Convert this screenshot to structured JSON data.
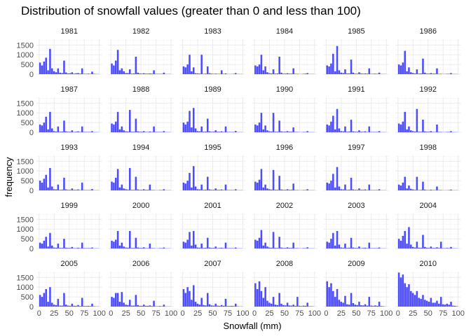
{
  "chart_data": {
    "type": "bar",
    "subtype": "faceted-histogram",
    "title": "Distribution of snowfall values (greater than 0 and less than 100)",
    "xlabel": "Snowfall (mm)",
    "ylabel": "frequency",
    "xlim": [
      0,
      100
    ],
    "ylim": [
      0,
      1800
    ],
    "x_ticks": [
      0,
      25,
      50,
      75,
      100
    ],
    "y_ticks": [
      0,
      500,
      1000,
      1500
    ],
    "bin_width": 3.33,
    "grid": true,
    "bar_color": "#4d4dff",
    "bin_centers": [
      1.67,
      5,
      8.33,
      11.67,
      15,
      18.33,
      21.67,
      25,
      28.33,
      31.67,
      35,
      38.33,
      41.67,
      45,
      48.33,
      51.67,
      55,
      58.33,
      61.67,
      65,
      68.33,
      71.67,
      75,
      78.33,
      81.67,
      85,
      88.33,
      91.67,
      95,
      98.33
    ],
    "facets": [
      {
        "label": "1981",
        "values": [
          600,
          450,
          650,
          850,
          200,
          1300,
          300,
          150,
          100,
          300,
          80,
          60,
          700,
          90,
          40,
          50,
          100,
          30,
          50,
          60,
          30,
          300,
          20,
          20,
          30,
          20,
          130,
          20,
          10,
          10
        ]
      },
      {
        "label": "1982",
        "values": [
          550,
          450,
          700,
          1250,
          200,
          300,
          150,
          60,
          60,
          250,
          30,
          40,
          900,
          80,
          40,
          30,
          50,
          30,
          30,
          40,
          30,
          200,
          20,
          20,
          20,
          20,
          80,
          10,
          10,
          10
        ]
      },
      {
        "label": "1983",
        "values": [
          400,
          350,
          500,
          1000,
          150,
          350,
          50,
          40,
          30,
          1000,
          20,
          30,
          400,
          50,
          30,
          20,
          30,
          20,
          20,
          200,
          20,
          40,
          10,
          10,
          10,
          20,
          60,
          10,
          10,
          10
        ]
      },
      {
        "label": "1984",
        "values": [
          450,
          400,
          500,
          1000,
          200,
          400,
          100,
          50,
          40,
          250,
          30,
          40,
          900,
          80,
          30,
          30,
          50,
          30,
          30,
          300,
          20,
          20,
          10,
          10,
          20,
          30,
          60,
          10,
          10,
          10
        ]
      },
      {
        "label": "1985",
        "values": [
          450,
          400,
          550,
          1050,
          150,
          1450,
          200,
          80,
          60,
          250,
          40,
          40,
          750,
          80,
          30,
          30,
          100,
          40,
          30,
          40,
          30,
          300,
          20,
          20,
          30,
          20,
          80,
          10,
          10,
          10
        ]
      },
      {
        "label": "1986",
        "values": [
          500,
          450,
          600,
          1200,
          150,
          350,
          100,
          60,
          40,
          250,
          30,
          40,
          800,
          80,
          30,
          30,
          60,
          30,
          30,
          300,
          20,
          20,
          10,
          10,
          20,
          20,
          60,
          10,
          10,
          10
        ]
      },
      {
        "label": "1987",
        "values": [
          400,
          350,
          500,
          800,
          150,
          1050,
          200,
          60,
          40,
          300,
          30,
          40,
          600,
          50,
          30,
          30,
          100,
          20,
          30,
          50,
          20,
          300,
          20,
          20,
          20,
          20,
          60,
          10,
          10,
          10
        ]
      },
      {
        "label": "1988",
        "values": [
          450,
          400,
          550,
          1050,
          150,
          300,
          100,
          50,
          40,
          1150,
          30,
          30,
          700,
          50,
          30,
          30,
          60,
          20,
          20,
          40,
          20,
          300,
          20,
          20,
          20,
          20,
          60,
          10,
          10,
          10
        ]
      },
      {
        "label": "1989",
        "values": [
          500,
          400,
          550,
          1100,
          250,
          1250,
          200,
          60,
          50,
          300,
          30,
          40,
          700,
          50,
          30,
          30,
          100,
          30,
          30,
          50,
          20,
          300,
          20,
          20,
          20,
          20,
          70,
          10,
          10,
          10
        ]
      },
      {
        "label": "1990",
        "values": [
          400,
          350,
          500,
          1000,
          150,
          350,
          100,
          50,
          40,
          1000,
          30,
          30,
          600,
          50,
          30,
          30,
          60,
          30,
          30,
          250,
          20,
          20,
          10,
          10,
          20,
          20,
          60,
          10,
          10,
          10
        ]
      },
      {
        "label": "1991",
        "values": [
          400,
          350,
          550,
          850,
          150,
          1200,
          200,
          60,
          50,
          300,
          30,
          40,
          650,
          50,
          30,
          30,
          100,
          30,
          30,
          50,
          20,
          300,
          20,
          20,
          20,
          20,
          60,
          10,
          10,
          10
        ]
      },
      {
        "label": "1992",
        "values": [
          450,
          400,
          550,
          1050,
          150,
          300,
          100,
          60,
          40,
          1200,
          30,
          30,
          650,
          50,
          30,
          30,
          60,
          20,
          20,
          400,
          20,
          20,
          10,
          10,
          20,
          20,
          60,
          10,
          10,
          10
        ]
      },
      {
        "label": "1993",
        "values": [
          500,
          400,
          600,
          800,
          150,
          1150,
          200,
          60,
          50,
          300,
          30,
          40,
          650,
          50,
          30,
          30,
          100,
          30,
          30,
          50,
          20,
          400,
          20,
          20,
          20,
          20,
          70,
          10,
          10,
          10
        ]
      },
      {
        "label": "1994",
        "values": [
          450,
          400,
          650,
          1100,
          150,
          300,
          100,
          60,
          40,
          1150,
          30,
          30,
          700,
          50,
          30,
          30,
          60,
          30,
          30,
          300,
          20,
          20,
          10,
          10,
          20,
          20,
          60,
          10,
          10,
          10
        ]
      },
      {
        "label": "1995",
        "values": [
          400,
          350,
          500,
          900,
          150,
          1250,
          200,
          60,
          50,
          300,
          30,
          40,
          700,
          50,
          30,
          30,
          100,
          30,
          30,
          50,
          20,
          300,
          20,
          20,
          20,
          20,
          60,
          10,
          10,
          10
        ]
      },
      {
        "label": "1996",
        "values": [
          450,
          400,
          550,
          1100,
          150,
          300,
          100,
          60,
          40,
          1050,
          30,
          30,
          750,
          50,
          30,
          30,
          60,
          30,
          30,
          350,
          20,
          20,
          10,
          10,
          20,
          20,
          60,
          10,
          10,
          10
        ]
      },
      {
        "label": "1997",
        "values": [
          400,
          350,
          500,
          850,
          150,
          1200,
          200,
          60,
          50,
          300,
          30,
          40,
          650,
          50,
          30,
          30,
          100,
          30,
          30,
          50,
          20,
          300,
          20,
          20,
          20,
          20,
          60,
          10,
          10,
          10
        ]
      },
      {
        "label": "1998",
        "values": [
          300,
          250,
          400,
          700,
          100,
          250,
          80,
          50,
          30,
          700,
          20,
          30,
          450,
          40,
          20,
          20,
          40,
          20,
          20,
          200,
          20,
          20,
          10,
          10,
          10,
          20,
          40,
          10,
          10,
          10
        ]
      },
      {
        "label": "1999",
        "values": [
          300,
          250,
          400,
          600,
          100,
          800,
          150,
          50,
          40,
          250,
          30,
          30,
          500,
          40,
          30,
          30,
          80,
          20,
          20,
          40,
          20,
          300,
          20,
          20,
          20,
          20,
          50,
          10,
          10,
          10
        ]
      },
      {
        "label": "2000",
        "values": [
          400,
          350,
          450,
          900,
          150,
          300,
          100,
          50,
          40,
          900,
          30,
          30,
          550,
          50,
          30,
          30,
          60,
          20,
          20,
          250,
          20,
          20,
          10,
          10,
          20,
          20,
          50,
          10,
          10,
          10
        ]
      },
      {
        "label": "2001",
        "values": [
          350,
          300,
          450,
          850,
          150,
          900,
          200,
          50,
          40,
          250,
          30,
          40,
          550,
          50,
          30,
          30,
          100,
          20,
          30,
          40,
          20,
          300,
          20,
          20,
          20,
          20,
          50,
          10,
          10,
          10
        ]
      },
      {
        "label": "2002",
        "values": [
          450,
          400,
          550,
          950,
          150,
          300,
          100,
          50,
          40,
          850,
          30,
          30,
          600,
          50,
          30,
          30,
          60,
          30,
          30,
          300,
          20,
          20,
          10,
          10,
          20,
          20,
          60,
          10,
          10,
          10
        ]
      },
      {
        "label": "2003",
        "values": [
          350,
          300,
          500,
          800,
          150,
          900,
          200,
          50,
          40,
          250,
          30,
          40,
          550,
          50,
          30,
          30,
          100,
          20,
          30,
          40,
          20,
          300,
          20,
          20,
          20,
          20,
          50,
          10,
          10,
          10
        ]
      },
      {
        "label": "2004",
        "values": [
          500,
          400,
          650,
          900,
          250,
          1100,
          200,
          80,
          50,
          350,
          40,
          40,
          700,
          80,
          40,
          30,
          100,
          30,
          30,
          60,
          30,
          350,
          20,
          20,
          30,
          20,
          80,
          10,
          10,
          10
        ]
      },
      {
        "label": "2005",
        "values": [
          600,
          500,
          700,
          900,
          250,
          1000,
          200,
          100,
          80,
          400,
          50,
          50,
          700,
          100,
          50,
          40,
          150,
          40,
          40,
          80,
          30,
          450,
          30,
          30,
          40,
          30,
          150,
          20,
          10,
          10
        ]
      },
      {
        "label": "2006",
        "values": [
          500,
          450,
          700,
          700,
          250,
          750,
          200,
          100,
          80,
          350,
          50,
          50,
          600,
          80,
          40,
          40,
          100,
          40,
          40,
          60,
          30,
          300,
          20,
          20,
          30,
          20,
          100,
          10,
          10,
          10
        ]
      },
      {
        "label": "2007",
        "values": [
          900,
          700,
          1000,
          800,
          350,
          1100,
          250,
          150,
          100,
          450,
          80,
          60,
          700,
          120,
          60,
          50,
          150,
          50,
          40,
          80,
          40,
          400,
          30,
          30,
          40,
          30,
          150,
          20,
          10,
          10
        ]
      },
      {
        "label": "2008",
        "values": [
          1200,
          900,
          1300,
          800,
          450,
          1000,
          300,
          200,
          150,
          500,
          100,
          80,
          700,
          150,
          80,
          60,
          200,
          60,
          50,
          100,
          40,
          500,
          40,
          30,
          50,
          40,
          200,
          20,
          20,
          10
        ]
      },
      {
        "label": "2009",
        "values": [
          1300,
          1000,
          1200,
          800,
          500,
          900,
          350,
          250,
          200,
          550,
          120,
          100,
          700,
          180,
          100,
          80,
          250,
          70,
          60,
          120,
          50,
          500,
          50,
          40,
          60,
          40,
          250,
          30,
          20,
          10
        ]
      },
      {
        "label": "2010",
        "values": [
          1750,
          1500,
          1650,
          1200,
          1000,
          1150,
          800,
          700,
          600,
          800,
          450,
          400,
          600,
          350,
          300,
          250,
          450,
          200,
          200,
          300,
          150,
          500,
          120,
          100,
          150,
          100,
          250,
          50,
          40,
          20
        ]
      }
    ]
  }
}
